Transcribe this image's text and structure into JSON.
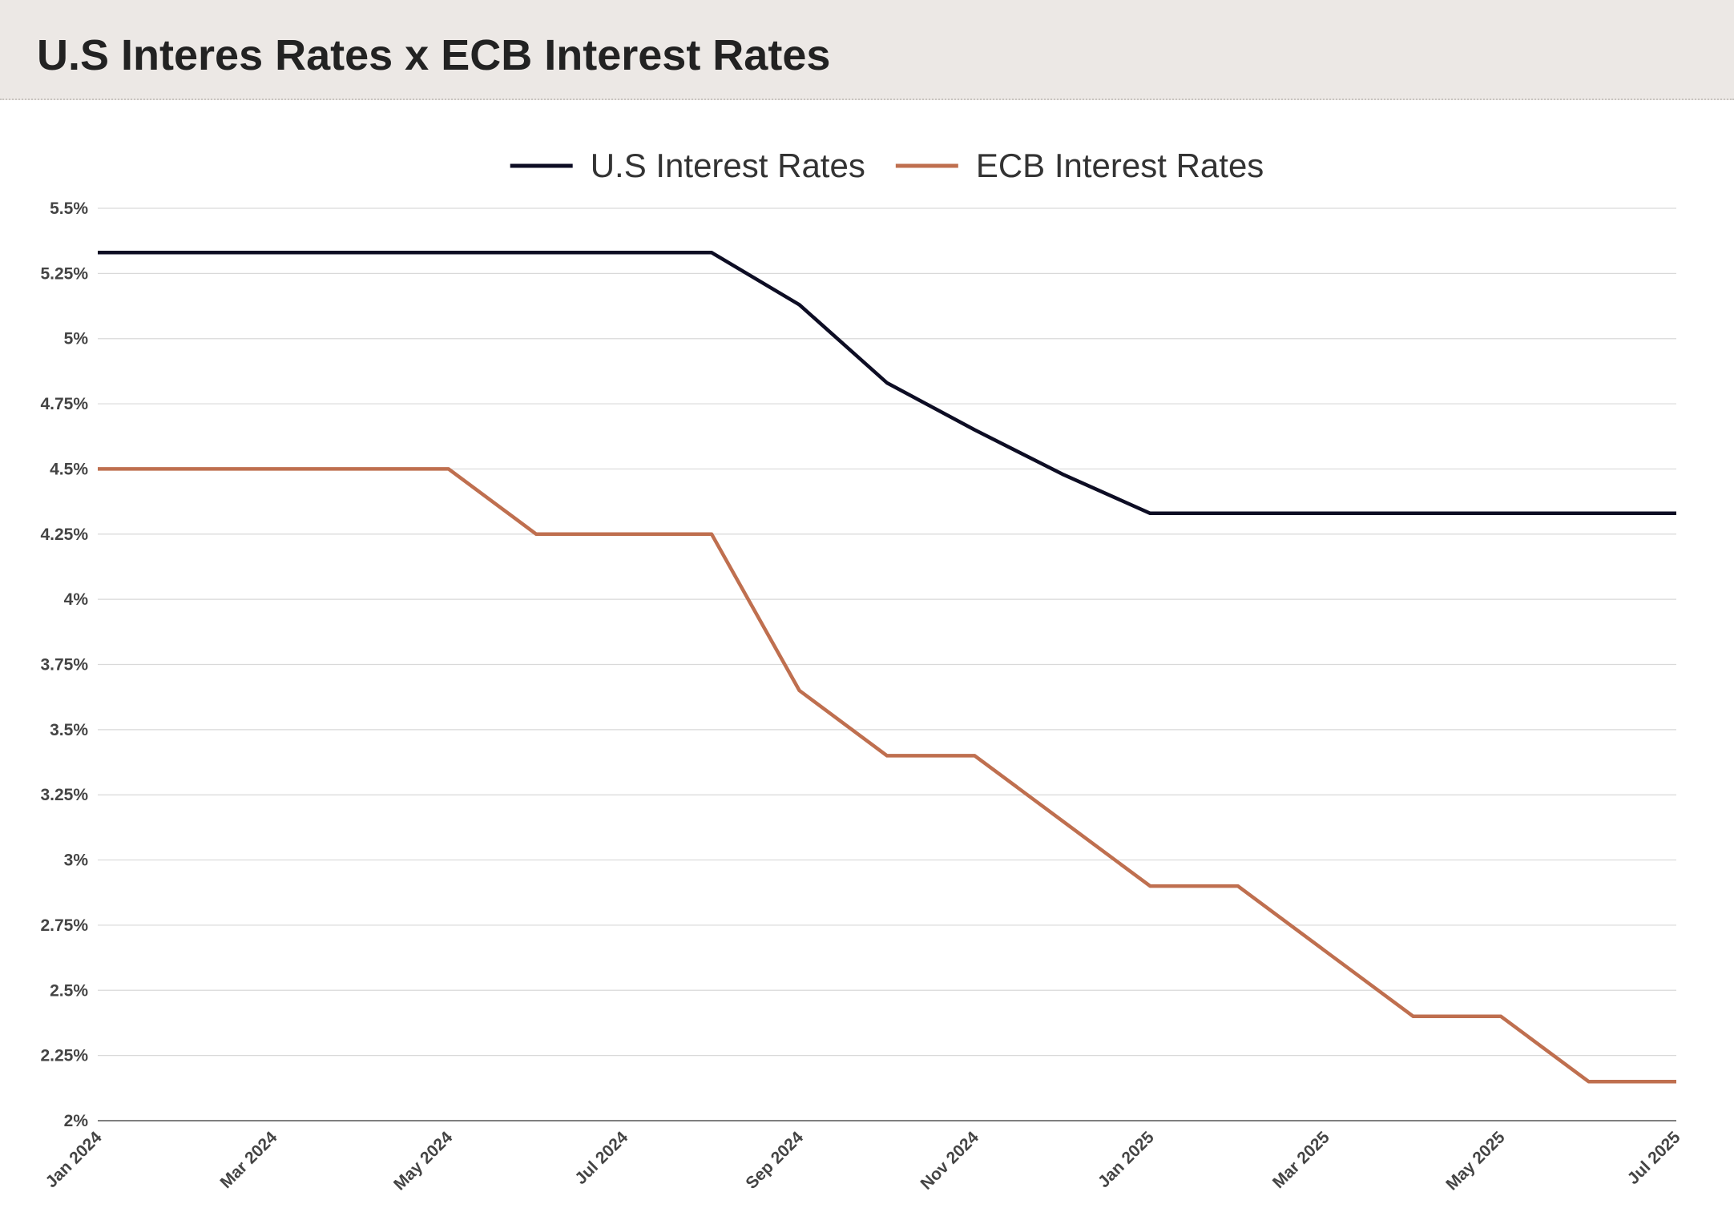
{
  "page_title": "U.S Interes Rates x ECB Interest Rates",
  "chart_data": {
    "type": "line",
    "title": "",
    "xlabel": "",
    "ylabel": "",
    "x": [
      "2024-01",
      "2024-02",
      "2024-03",
      "2024-04",
      "2024-05",
      "2024-06",
      "2024-07",
      "2024-08",
      "2024-09",
      "2024-10",
      "2024-11",
      "2024-12",
      "2025-01",
      "2025-02",
      "2025-03",
      "2025-04",
      "2025-05",
      "2025-06",
      "2025-07"
    ],
    "x_tick_labels": [
      "Jan 2024",
      "Mar 2024",
      "May 2024",
      "Jul 2024",
      "Sep 2024",
      "Nov 2024",
      "Jan 2025",
      "Mar 2025",
      "May 2025",
      "Jul 2025"
    ],
    "y_tick_labels": [
      "2%",
      "2.25%",
      "2.5%",
      "2.75%",
      "3%",
      "3.25%",
      "3.5%",
      "3.75%",
      "4%",
      "4.25%",
      "4.5%",
      "4.75%",
      "5%",
      "5.25%",
      "5.5%"
    ],
    "ylim": [
      2,
      5.5
    ],
    "grid": true,
    "legend_position": "top-center",
    "series": [
      {
        "name": "U.S Interest Rates",
        "color": "#0d0d24",
        "values": [
          5.33,
          5.33,
          5.33,
          5.33,
          5.33,
          5.33,
          5.33,
          5.33,
          5.13,
          4.83,
          4.65,
          4.48,
          4.33,
          4.33,
          4.33,
          4.33,
          4.33,
          4.33,
          4.33
        ]
      },
      {
        "name": "ECB Interest Rates",
        "color": "#bf6f4f",
        "values": [
          4.5,
          4.5,
          4.5,
          4.5,
          4.5,
          4.25,
          4.25,
          4.25,
          3.65,
          3.4,
          3.4,
          3.15,
          2.9,
          2.9,
          2.65,
          2.4,
          2.4,
          2.15,
          2.15
        ]
      }
    ]
  }
}
